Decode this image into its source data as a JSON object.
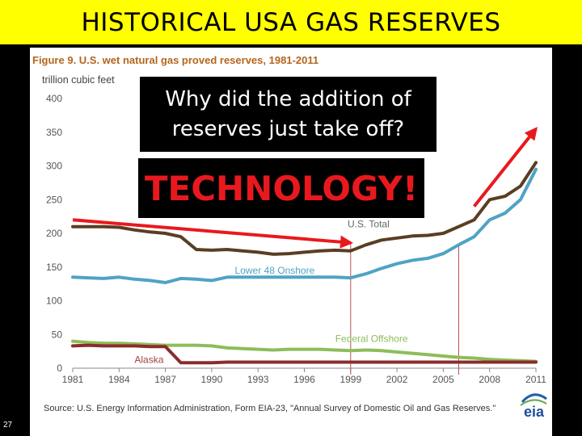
{
  "slide": {
    "title": "HISTORICAL USA GAS RESERVES",
    "number": "27"
  },
  "figure": {
    "title": "Figure 9. U.S. wet natural gas proved reserves, 1981-2011",
    "unit_label": "trillion cubic feet",
    "source": "Source: U.S. Energy Information Administration, Form EIA-23, \"Annual Survey of Domestic Oil and Gas Reserves.\"",
    "logo_text": "eia"
  },
  "callouts": {
    "question": "Why did the addition of reserves just take off?",
    "answer": "TECHNOLOGY!"
  },
  "chart_data": {
    "type": "line",
    "x": [
      1981,
      1982,
      1983,
      1984,
      1985,
      1986,
      1987,
      1988,
      1989,
      1990,
      1991,
      1992,
      1993,
      1994,
      1995,
      1996,
      1997,
      1998,
      1999,
      2000,
      2001,
      2002,
      2003,
      2004,
      2005,
      2006,
      2007,
      2008,
      2009,
      2010,
      2011
    ],
    "series": [
      {
        "name": "U.S. Total",
        "color": "#5a3e22",
        "values": [
          210,
          210,
          210,
          209,
          205,
          202,
          200,
          195,
          176,
          175,
          176,
          174,
          172,
          169,
          170,
          172,
          174,
          175,
          174,
          183,
          190,
          193,
          196,
          197,
          200,
          210,
          220,
          250,
          255,
          270,
          305
        ]
      },
      {
        "name": "Lower 48 Onshore",
        "color": "#4fa3c4",
        "values": [
          135,
          134,
          133,
          135,
          132,
          130,
          127,
          133,
          132,
          130,
          135,
          135,
          135,
          135,
          135,
          135,
          135,
          135,
          134,
          140,
          148,
          155,
          160,
          163,
          170,
          183,
          195,
          220,
          230,
          250,
          295
        ]
      },
      {
        "name": "Federal Offshore",
        "color": "#8dbd5a",
        "values": [
          40,
          38,
          37,
          37,
          36,
          35,
          34,
          34,
          34,
          33,
          30,
          29,
          28,
          27,
          28,
          28,
          28,
          27,
          26,
          27,
          26,
          24,
          22,
          20,
          18,
          16,
          15,
          13,
          12,
          11,
          10
        ]
      },
      {
        "name": "Alaska",
        "color": "#8b2c2c",
        "values": [
          33,
          34,
          33,
          33,
          33,
          32,
          32,
          8,
          8,
          8,
          9,
          9,
          9,
          9,
          9,
          9,
          9,
          9,
          9,
          9,
          9,
          9,
          9,
          9,
          9,
          9,
          9,
          9,
          9,
          9,
          9
        ]
      }
    ],
    "xticks": [
      1981,
      1984,
      1987,
      1990,
      1993,
      1996,
      1999,
      2002,
      2005,
      2008,
      2011
    ],
    "yticks": [
      0,
      50,
      100,
      150,
      200,
      250,
      300,
      350,
      400
    ],
    "ylim": [
      0,
      400
    ],
    "ylabel": "trillion cubic feet",
    "xlabel": "",
    "markers": [
      1999,
      2006
    ],
    "arrows": [
      {
        "from": [
          1981,
          220
        ],
        "to": [
          1999,
          186
        ]
      },
      {
        "from": [
          2007,
          240
        ],
        "to": [
          2011,
          355
        ]
      }
    ],
    "grid": false
  }
}
